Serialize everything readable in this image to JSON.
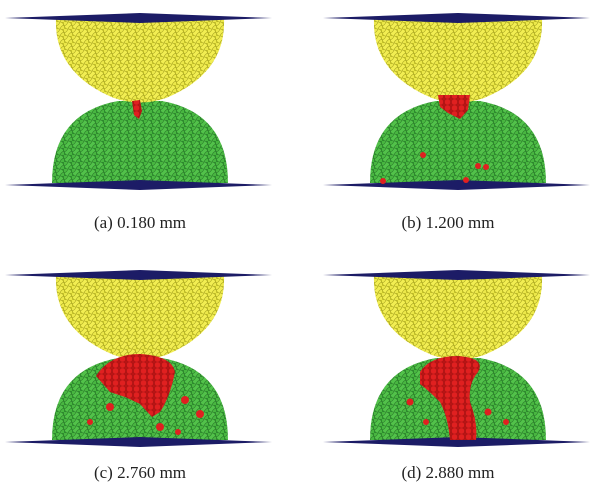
{
  "panels": [
    {
      "caption": "(a) 0.180 mm"
    },
    {
      "caption": "(b) 1.200 mm"
    },
    {
      "caption": "(c) 2.760 mm"
    },
    {
      "caption": "(d) 2.880 mm"
    }
  ]
}
